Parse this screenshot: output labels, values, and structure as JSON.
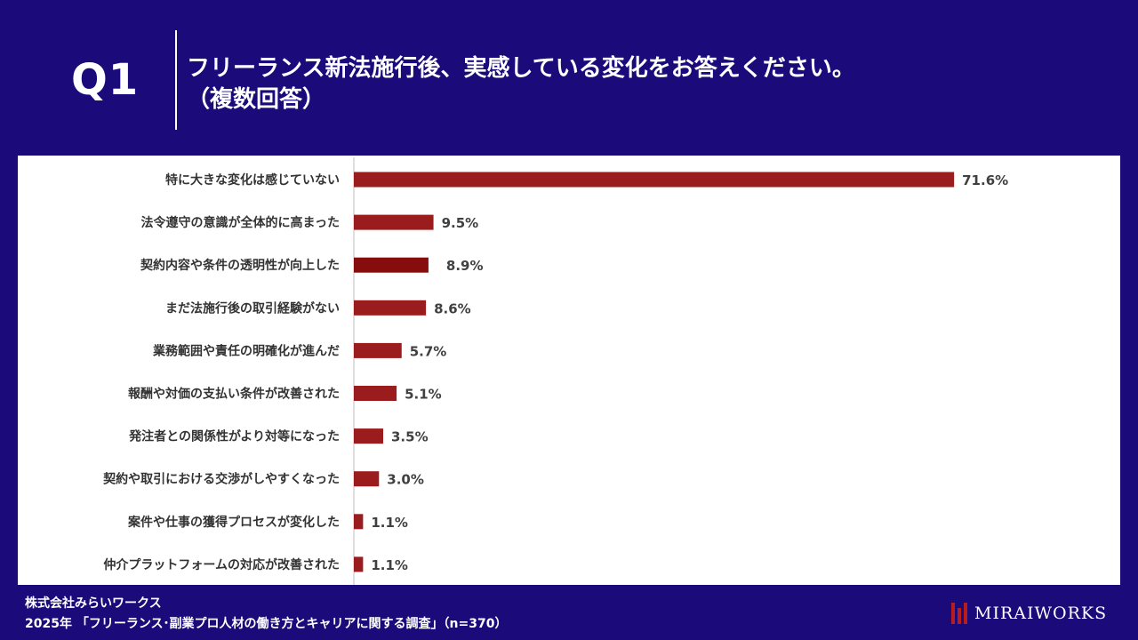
{
  "header": {
    "q_label": "Q1",
    "title_line1": "フリーランス新法施行後、実感している変化をお答えください。",
    "title_line2": "（複数回答）"
  },
  "colors": {
    "background": "#1b0a7a",
    "bar": "#9b1c1c",
    "bar_highlight": "#870d0d",
    "panel": "#ffffff"
  },
  "chart_data": {
    "type": "bar",
    "orientation": "horizontal",
    "categories": [
      "特に大きな変化は感じていない",
      "法令遵守の意識が全体的に高まった",
      "契約内容や条件の透明性が向上した",
      "まだ法施行後の取引経験がない",
      "業務範囲や責任の明確化が進んだ",
      "報酬や対価の支払い条件が改善された",
      "発注者との関係性がより対等になった",
      "契約や取引における交渉がしやすくなった",
      "案件や仕事の獲得プロセスが変化した",
      "仲介プラットフォームの対応が改善された"
    ],
    "values": [
      71.6,
      9.5,
      8.9,
      8.6,
      5.7,
      5.1,
      3.5,
      3.0,
      1.1,
      1.1
    ],
    "value_labels": [
      "71.6%",
      "9.5%",
      "8.9%",
      "8.6%",
      "5.7%",
      "5.1%",
      "3.5%",
      "3.0%",
      "1.1%",
      "1.1%"
    ],
    "xlim": [
      0,
      80
    ],
    "grid": false,
    "legend": "none"
  },
  "footer": {
    "company": "株式会社みらいワークス",
    "source": "2025年 「フリーランス･副業プロ人材の働き方とキャリアに関する調査」（n=370）",
    "brand": "MIRAIWORKS"
  },
  "brand_icon": "brand-logo-icon"
}
